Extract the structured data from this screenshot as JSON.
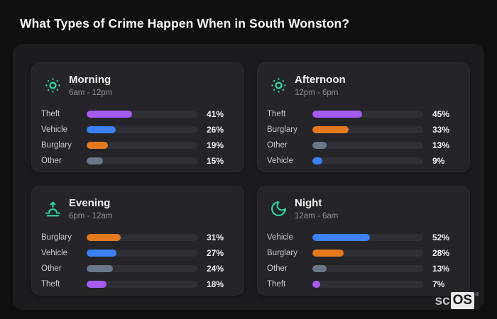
{
  "page": {
    "title": "What Types of Crime Happen When in South Wonston?"
  },
  "logo": {
    "prefix": "sc",
    "suffix": "OS",
    "registered": "®"
  },
  "colors": {
    "theft": "#a55bf0",
    "vehicle": "#3b82f6",
    "burglary": "#e5791d",
    "other": "#6b7889",
    "icon_accent": "#2fd6a3",
    "bar_track": "#2f2f36",
    "page_bg": "#0f0f12",
    "panel_bg": "#1b1b20",
    "card_bg": "#242429"
  },
  "chart_data": [
    {
      "type": "bar",
      "orientation": "horizontal",
      "title": "Morning",
      "subtitle": "6am - 12pm",
      "icon": "sun-dots-icon",
      "xlim": [
        0,
        100
      ],
      "categories": [
        "Theft",
        "Vehicle",
        "Burglary",
        "Other"
      ],
      "values": [
        41,
        26,
        19,
        15
      ],
      "value_labels": [
        "41%",
        "26%",
        "19%",
        "15%"
      ],
      "bar_colors": [
        "theft",
        "vehicle",
        "burglary",
        "other"
      ]
    },
    {
      "type": "bar",
      "orientation": "horizontal",
      "title": "Afternoon",
      "subtitle": "12pm - 6pm",
      "icon": "sun-dots-icon",
      "xlim": [
        0,
        100
      ],
      "categories": [
        "Theft",
        "Burglary",
        "Other",
        "Vehicle"
      ],
      "values": [
        45,
        33,
        13,
        9
      ],
      "value_labels": [
        "45%",
        "33%",
        "13%",
        "9%"
      ],
      "bar_colors": [
        "theft",
        "burglary",
        "other",
        "vehicle"
      ]
    },
    {
      "type": "bar",
      "orientation": "horizontal",
      "title": "Evening",
      "subtitle": "6pm - 12am",
      "icon": "sunrise-icon",
      "xlim": [
        0,
        100
      ],
      "categories": [
        "Burglary",
        "Vehicle",
        "Other",
        "Theft"
      ],
      "values": [
        31,
        27,
        24,
        18
      ],
      "value_labels": [
        "31%",
        "27%",
        "24%",
        "18%"
      ],
      "bar_colors": [
        "burglary",
        "vehicle",
        "other",
        "theft"
      ]
    },
    {
      "type": "bar",
      "orientation": "horizontal",
      "title": "Night",
      "subtitle": "12am - 6am",
      "icon": "moon-icon",
      "xlim": [
        0,
        100
      ],
      "categories": [
        "Vehicle",
        "Burglary",
        "Other",
        "Theft"
      ],
      "values": [
        52,
        28,
        13,
        7
      ],
      "value_labels": [
        "52%",
        "28%",
        "13%",
        "7%"
      ],
      "bar_colors": [
        "vehicle",
        "burglary",
        "other",
        "theft"
      ]
    }
  ]
}
